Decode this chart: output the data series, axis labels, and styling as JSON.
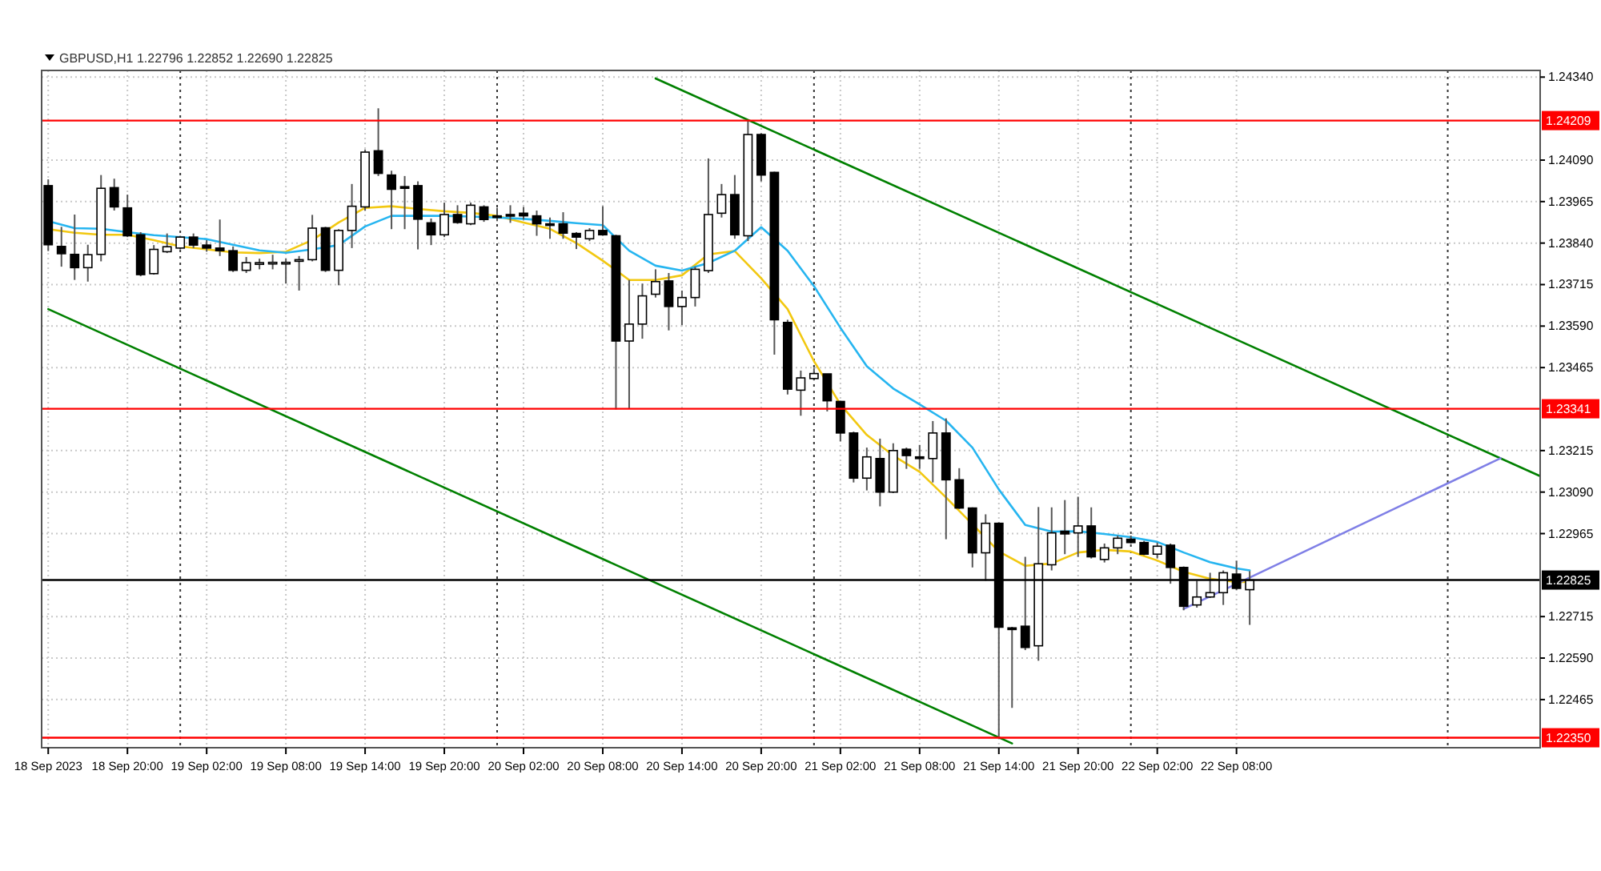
{
  "chart_data": {
    "type": "candlestick",
    "title": "GBPUSD,H1 1.22796 1.22852 1.22690 1.22825",
    "x": [
      "2023-09-18T14:00",
      "2023-09-18T15:00",
      "2023-09-18T16:00",
      "2023-09-18T17:00",
      "2023-09-18T18:00",
      "2023-09-18T19:00",
      "2023-09-18T20:00",
      "2023-09-18T21:00",
      "2023-09-18T22:00",
      "2023-09-18T23:00",
      "2023-09-19T00:00",
      "2023-09-19T01:00",
      "2023-09-19T02:00",
      "2023-09-19T03:00",
      "2023-09-19T04:00",
      "2023-09-19T05:00",
      "2023-09-19T06:00",
      "2023-09-19T07:00",
      "2023-09-19T08:00",
      "2023-09-19T09:00",
      "2023-09-19T10:00",
      "2023-09-19T11:00",
      "2023-09-19T12:00",
      "2023-09-19T13:00",
      "2023-09-19T14:00",
      "2023-09-19T15:00",
      "2023-09-19T16:00",
      "2023-09-19T17:00",
      "2023-09-19T18:00",
      "2023-09-19T19:00",
      "2023-09-19T20:00",
      "2023-09-19T21:00",
      "2023-09-19T22:00",
      "2023-09-19T23:00",
      "2023-09-20T00:00",
      "2023-09-20T01:00",
      "2023-09-20T02:00",
      "2023-09-20T03:00",
      "2023-09-20T04:00",
      "2023-09-20T05:00",
      "2023-09-20T06:00",
      "2023-09-20T07:00",
      "2023-09-20T08:00",
      "2023-09-20T09:00",
      "2023-09-20T10:00",
      "2023-09-20T11:00",
      "2023-09-20T12:00",
      "2023-09-20T13:00",
      "2023-09-20T14:00",
      "2023-09-20T15:00",
      "2023-09-20T16:00",
      "2023-09-20T17:00",
      "2023-09-20T18:00",
      "2023-09-20T19:00",
      "2023-09-20T20:00",
      "2023-09-20T21:00",
      "2023-09-20T22:00",
      "2023-09-20T23:00",
      "2023-09-21T00:00",
      "2023-09-21T01:00",
      "2023-09-21T02:00",
      "2023-09-21T03:00",
      "2023-09-21T04:00",
      "2023-09-21T05:00",
      "2023-09-21T06:00",
      "2023-09-21T07:00",
      "2023-09-21T08:00",
      "2023-09-21T09:00",
      "2023-09-21T10:00",
      "2023-09-21T11:00",
      "2023-09-21T12:00",
      "2023-09-21T13:00",
      "2023-09-21T14:00",
      "2023-09-21T15:00",
      "2023-09-21T16:00",
      "2023-09-21T17:00",
      "2023-09-21T18:00",
      "2023-09-21T19:00",
      "2023-09-21T20:00",
      "2023-09-21T21:00",
      "2023-09-21T22:00",
      "2023-09-21T23:00",
      "2023-09-22T00:00",
      "2023-09-22T01:00",
      "2023-09-22T02:00",
      "2023-09-22T03:00",
      "2023-09-22T04:00",
      "2023-09-22T05:00",
      "2023-09-22T06:00",
      "2023-09-22T07:00",
      "2023-09-22T08:00",
      "2023-09-22T09:00"
    ],
    "ohlc": [
      [
        1.24013,
        1.24032,
        1.23816,
        1.23835
      ],
      [
        1.2383,
        1.23889,
        1.23769,
        1.23808
      ],
      [
        1.23806,
        1.23926,
        1.23729,
        1.23766
      ],
      [
        1.23766,
        1.23835,
        1.23724,
        1.23805
      ],
      [
        1.23806,
        1.24045,
        1.23785,
        1.24005
      ],
      [
        1.24007,
        1.24034,
        1.23938,
        1.23949
      ],
      [
        1.23946,
        1.23986,
        1.23858,
        1.23862
      ],
      [
        1.23865,
        1.23873,
        1.2374,
        1.23745
      ],
      [
        1.23748,
        1.23834,
        1.23745,
        1.23821
      ],
      [
        1.23814,
        1.23869,
        1.2381,
        1.23829
      ],
      [
        1.23825,
        1.23862,
        1.23821,
        1.23858
      ],
      [
        1.23858,
        1.23869,
        1.23825,
        1.23834
      ],
      [
        1.23834,
        1.23849,
        1.23814,
        1.23825
      ],
      [
        1.23825,
        1.23911,
        1.23801,
        1.23817
      ],
      [
        1.23817,
        1.2383,
        1.23753,
        1.23758
      ],
      [
        1.23758,
        1.23798,
        1.2375,
        1.23781
      ],
      [
        1.23776,
        1.23793,
        1.23761,
        1.23781
      ],
      [
        1.2378,
        1.23805,
        1.23761,
        1.23782
      ],
      [
        1.23781,
        1.23793,
        1.23718,
        1.23782
      ],
      [
        1.23787,
        1.23801,
        1.23697,
        1.2379
      ],
      [
        1.2379,
        1.23925,
        1.23785,
        1.23885
      ],
      [
        1.23886,
        1.23889,
        1.23753,
        1.23758
      ],
      [
        1.23758,
        1.23882,
        1.23713,
        1.23878
      ],
      [
        1.23878,
        1.24018,
        1.23825,
        1.23951
      ],
      [
        1.23949,
        1.24122,
        1.23938,
        1.24114
      ],
      [
        1.24118,
        1.24246,
        1.24042,
        1.2405
      ],
      [
        1.24045,
        1.24058,
        1.23882,
        1.24002
      ],
      [
        1.2401,
        1.24042,
        1.23882,
        1.24005
      ],
      [
        1.24013,
        1.24026,
        1.23821,
        1.23912
      ],
      [
        1.23901,
        1.23914,
        1.23834,
        1.23865
      ],
      [
        1.23865,
        1.23962,
        1.23858,
        1.23926
      ],
      [
        1.23926,
        1.23954,
        1.23898,
        1.23902
      ],
      [
        1.23898,
        1.23962,
        1.23894,
        1.23954
      ],
      [
        1.23949,
        1.23954,
        1.23904,
        1.23911
      ],
      [
        1.23922,
        1.23946,
        1.23906,
        1.2392
      ],
      [
        1.23926,
        1.23954,
        1.23901,
        1.23923
      ],
      [
        1.2393,
        1.23949,
        1.23911,
        1.23922
      ],
      [
        1.23922,
        1.23938,
        1.23862,
        1.23898
      ],
      [
        1.23898,
        1.23917,
        1.23853,
        1.23896
      ],
      [
        1.23898,
        1.23933,
        1.23853,
        1.2387
      ],
      [
        1.23869,
        1.23873,
        1.23822,
        1.23858
      ],
      [
        1.23853,
        1.23885,
        1.23846,
        1.23878
      ],
      [
        1.23878,
        1.23951,
        1.23862,
        1.23865
      ],
      [
        1.23862,
        1.23865,
        1.23339,
        1.23545
      ],
      [
        1.23545,
        1.23729,
        1.23341,
        1.23596
      ],
      [
        1.23596,
        1.23718,
        1.23552,
        1.23681
      ],
      [
        1.23686,
        1.23761,
        1.23676,
        1.23724
      ],
      [
        1.23726,
        1.2375,
        1.23577,
        1.23649
      ],
      [
        1.23649,
        1.23697,
        1.23593,
        1.23676
      ],
      [
        1.23676,
        1.23769,
        1.23649,
        1.23761
      ],
      [
        1.23757,
        1.24095,
        1.2375,
        1.23926
      ],
      [
        1.2393,
        1.24018,
        1.23917,
        1.23986
      ],
      [
        1.23986,
        1.24045,
        1.23853,
        1.23865
      ],
      [
        1.23862,
        1.2421,
        1.23846,
        1.24167
      ],
      [
        1.24167,
        1.24171,
        1.24026,
        1.24045
      ],
      [
        1.24053,
        1.24055,
        1.23504,
        1.23609
      ],
      [
        1.23601,
        1.23609,
        1.23384,
        1.234
      ],
      [
        1.23397,
        1.23456,
        1.2332,
        1.23434
      ],
      [
        1.23432,
        1.23464,
        1.23426,
        1.23447
      ],
      [
        1.23446,
        1.23446,
        1.23333,
        1.23365
      ],
      [
        1.23363,
        1.23365,
        1.23243,
        1.23268
      ],
      [
        1.23268,
        1.23272,
        1.23119,
        1.23132
      ],
      [
        1.23132,
        1.23224,
        1.23095,
        1.23196
      ],
      [
        1.23191,
        1.23251,
        1.23047,
        1.2309
      ],
      [
        1.2309,
        1.23237,
        1.23087,
        1.23215
      ],
      [
        1.23219,
        1.23224,
        1.2316,
        1.232
      ],
      [
        1.23196,
        1.23232,
        1.2316,
        1.23191
      ],
      [
        1.23191,
        1.23304,
        1.23119,
        1.23268
      ],
      [
        1.23268,
        1.23312,
        1.22948,
        1.23127
      ],
      [
        1.23127,
        1.23162,
        1.23039,
        1.23042
      ],
      [
        1.23042,
        1.23044,
        1.22863,
        1.22907
      ],
      [
        1.22907,
        1.23023,
        1.22823,
        1.22996
      ],
      [
        1.22996,
        1.22999,
        1.2235,
        1.22683
      ],
      [
        1.22681,
        1.22684,
        1.2244,
        1.22676
      ],
      [
        1.22686,
        1.22895,
        1.22614,
        1.22622
      ],
      [
        1.22627,
        1.23045,
        1.22582,
        1.22874
      ],
      [
        1.22871,
        1.23044,
        1.22854,
        1.22967
      ],
      [
        1.22972,
        1.23066,
        1.22903,
        1.22964
      ],
      [
        1.22967,
        1.23076,
        1.22895,
        1.22988
      ],
      [
        1.22988,
        1.23044,
        1.2289,
        1.22895
      ],
      [
        1.22887,
        1.22935,
        1.22878,
        1.22922
      ],
      [
        1.22922,
        1.22959,
        1.22903,
        1.22951
      ],
      [
        1.22948,
        1.22959,
        1.22935,
        1.22938
      ],
      [
        1.22938,
        1.22943,
        1.229,
        1.22903
      ],
      [
        1.22903,
        1.22938,
        1.2289,
        1.22927
      ],
      [
        1.2293,
        1.22935,
        1.22814,
        1.22863
      ],
      [
        1.22863,
        1.22866,
        1.22734,
        1.22746
      ],
      [
        1.2275,
        1.22823,
        1.22742,
        1.22774
      ],
      [
        1.22774,
        1.22847,
        1.22771,
        1.22787
      ],
      [
        1.22787,
        1.22854,
        1.2275,
        1.22847
      ],
      [
        1.22843,
        1.22883,
        1.22795,
        1.228
      ],
      [
        1.22796,
        1.22852,
        1.2269,
        1.22825
      ]
    ],
    "colors": [
      "#000000",
      "#000000",
      "#000000",
      "#ffffff",
      "#ffffff",
      "#000000",
      "#000000",
      "#000000",
      "#ffffff",
      "#ffffff",
      "#ffffff",
      "#000000",
      "#000000",
      "#000000",
      "#000000",
      "#ffffff",
      "#ffffff",
      "#ffffff",
      "#ffffff",
      "#ffffff",
      "#ffffff",
      "#000000",
      "#ffffff",
      "#ffffff",
      "#ffffff",
      "#000000",
      "#000000",
      "#000000",
      "#000000",
      "#000000",
      "#ffffff",
      "#000000",
      "#ffffff",
      "#000000",
      "#000000",
      "#000000",
      "#000000",
      "#000000",
      "#000000",
      "#000000",
      "#000000",
      "#ffffff",
      "#000000",
      "#000000",
      "#ffffff",
      "#ffffff",
      "#ffffff",
      "#000000",
      "#ffffff",
      "#ffffff",
      "#ffffff",
      "#ffffff",
      "#000000",
      "#ffffff",
      "#000000",
      "#000000",
      "#000000",
      "#ffffff",
      "#ffffff",
      "#000000",
      "#000000",
      "#000000",
      "#ffffff",
      "#000000",
      "#ffffff",
      "#000000",
      "#000000",
      "#ffffff",
      "#000000",
      "#000000",
      "#000000",
      "#ffffff",
      "#000000",
      "#000000",
      "#000000",
      "#ffffff",
      "#ffffff",
      "#000000",
      "#ffffff",
      "#000000",
      "#ffffff",
      "#ffffff",
      "#000000",
      "#000000",
      "#ffffff",
      "#000000",
      "#000000",
      "#ffffff",
      "#ffffff",
      "#ffffff",
      "#000000",
      "#ffffff"
    ],
    "series": [
      {
        "type": "line",
        "color": "#f2c811",
        "x": [
          "2023-09-18T14:00",
          "2023-09-18T16:00",
          "2023-09-18T18:00",
          "2023-09-18T20:00",
          "2023-09-18T22:00",
          "2023-09-19T00:00",
          "2023-09-19T02:00",
          "2023-09-19T04:00",
          "2023-09-19T06:00",
          "2023-09-19T08:00",
          "2023-09-19T10:00",
          "2023-09-19T12:00",
          "2023-09-19T14:00",
          "2023-09-19T16:00",
          "2023-09-19T18:00",
          "2023-09-19T20:00",
          "2023-09-19T22:00",
          "2023-09-20T00:00",
          "2023-09-20T02:00",
          "2023-09-20T04:00",
          "2023-09-20T06:00",
          "2023-09-20T08:00",
          "2023-09-20T10:00",
          "2023-09-20T12:00",
          "2023-09-20T14:00",
          "2023-09-20T16:00",
          "2023-09-20T18:00",
          "2023-09-20T20:00",
          "2023-09-20T22:00",
          "2023-09-21T00:00",
          "2023-09-21T02:00",
          "2023-09-21T04:00",
          "2023-09-21T06:00",
          "2023-09-21T08:00",
          "2023-09-21T10:00",
          "2023-09-21T12:00",
          "2023-09-21T14:00",
          "2023-09-21T16:00",
          "2023-09-21T18:00",
          "2023-09-21T20:00",
          "2023-09-21T22:00",
          "2023-09-22T00:00",
          "2023-09-22T02:00",
          "2023-09-22T04:00",
          "2023-09-22T06:00",
          "2023-09-22T08:00",
          "2023-09-22T09:00"
        ],
        "values": [
          1.23882,
          1.23871,
          1.23865,
          1.23865,
          1.23849,
          1.2383,
          1.23821,
          1.23812,
          1.2381,
          1.23814,
          1.23849,
          1.23902,
          1.23946,
          1.23951,
          1.23943,
          1.23936,
          1.23931,
          1.23922,
          1.23902,
          1.23883,
          1.2384,
          1.23787,
          1.23729,
          1.23729,
          1.23743,
          1.23806,
          1.23816,
          1.23734,
          1.23641,
          1.23484,
          1.23354,
          1.23262,
          1.232,
          1.23151,
          1.23074,
          1.22993,
          1.22911,
          1.22868,
          1.22875,
          1.22908,
          1.22916,
          1.22911,
          1.22884,
          1.2285,
          1.22829,
          1.22819,
          1.22819
        ]
      },
      {
        "type": "line",
        "color": "#26b5f0",
        "x": [
          "2023-09-18T14:00",
          "2023-09-18T16:00",
          "2023-09-18T18:00",
          "2023-09-18T20:00",
          "2023-09-18T22:00",
          "2023-09-19T00:00",
          "2023-09-19T02:00",
          "2023-09-19T04:00",
          "2023-09-19T06:00",
          "2023-09-19T08:00",
          "2023-09-19T10:00",
          "2023-09-19T12:00",
          "2023-09-19T14:00",
          "2023-09-19T16:00",
          "2023-09-19T18:00",
          "2023-09-19T20:00",
          "2023-09-19T22:00",
          "2023-09-20T00:00",
          "2023-09-20T02:00",
          "2023-09-20T04:00",
          "2023-09-20T06:00",
          "2023-09-20T08:00",
          "2023-09-20T10:00",
          "2023-09-20T12:00",
          "2023-09-20T14:00",
          "2023-09-20T16:00",
          "2023-09-20T18:00",
          "2023-09-20T20:00",
          "2023-09-20T22:00",
          "2023-09-21T00:00",
          "2023-09-21T02:00",
          "2023-09-21T04:00",
          "2023-09-21T06:00",
          "2023-09-21T08:00",
          "2023-09-21T10:00",
          "2023-09-21T12:00",
          "2023-09-21T14:00",
          "2023-09-21T16:00",
          "2023-09-21T18:00",
          "2023-09-21T20:00",
          "2023-09-21T22:00",
          "2023-09-22T00:00",
          "2023-09-22T02:00",
          "2023-09-22T04:00",
          "2023-09-22T06:00",
          "2023-09-22T08:00",
          "2023-09-22T09:00"
        ],
        "values": [
          1.23906,
          1.23885,
          1.23883,
          1.23873,
          1.23864,
          1.23858,
          1.23852,
          1.23835,
          1.23818,
          1.23811,
          1.23821,
          1.23834,
          1.2389,
          1.23922,
          1.23922,
          1.23922,
          1.2392,
          1.23917,
          1.23913,
          1.23907,
          1.239,
          1.23894,
          1.23817,
          1.23772,
          1.23757,
          1.2378,
          1.23817,
          1.23888,
          1.23817,
          1.2371,
          1.23585,
          1.23469,
          1.23402,
          1.23354,
          1.23305,
          1.23224,
          1.23098,
          1.22991,
          1.22971,
          1.22972,
          1.22964,
          1.22954,
          1.2294,
          1.22908,
          1.22879,
          1.2286,
          1.22854
        ]
      },
      {
        "type": "line",
        "color": "#008000",
        "x": [
          "2023-09-20T12:00",
          "2023-09-23T07:00"
        ],
        "values": [
          1.24336,
          1.23138
        ]
      },
      {
        "type": "line",
        "color": "#008000",
        "x": [
          "2023-09-18T14:00",
          "2023-09-21T15:00"
        ],
        "values": [
          1.23641,
          1.22333
        ]
      },
      {
        "type": "line",
        "color": "#7f7fe6",
        "x": [
          "2023-09-22T04:00",
          "2023-09-23T04:00"
        ],
        "values": [
          1.22738,
          1.23192
        ]
      }
    ],
    "xlim": [
      "2023-09-18T13:30",
      "2023-09-23T07:00"
    ],
    "xticks": [
      {
        "value": "2023-09-18T14:00",
        "label": "18 Sep 2023"
      },
      {
        "value": "2023-09-18T20:00",
        "label": "18 Sep 20:00"
      },
      {
        "value": "2023-09-19T02:00",
        "label": "19 Sep 02:00"
      },
      {
        "value": "2023-09-19T08:00",
        "label": "19 Sep 08:00"
      },
      {
        "value": "2023-09-19T14:00",
        "label": "19 Sep 14:00"
      },
      {
        "value": "2023-09-19T20:00",
        "label": "19 Sep 20:00"
      },
      {
        "value": "2023-09-20T02:00",
        "label": "20 Sep 02:00"
      },
      {
        "value": "2023-09-20T08:00",
        "label": "20 Sep 08:00"
      },
      {
        "value": "2023-09-20T14:00",
        "label": "20 Sep 14:00"
      },
      {
        "value": "2023-09-20T20:00",
        "label": "20 Sep 20:00"
      },
      {
        "value": "2023-09-21T02:00",
        "label": "21 Sep 02:00"
      },
      {
        "value": "2023-09-21T08:00",
        "label": "21 Sep 08:00"
      },
      {
        "value": "2023-09-21T14:00",
        "label": "21 Sep 14:00"
      },
      {
        "value": "2023-09-21T20:00",
        "label": "21 Sep 20:00"
      },
      {
        "value": "2023-09-22T02:00",
        "label": "22 Sep 02:00"
      },
      {
        "value": "2023-09-22T08:00",
        "label": "22 Sep 08:00"
      }
    ],
    "ylim": [
      1.2232,
      1.2436
    ],
    "yticks": [
      {
        "value": 1.2434,
        "label": "1.24340"
      },
      {
        "value": 1.2409,
        "label": "1.24090"
      },
      1.23965,
      {
        "value": 1.2384,
        "label": "1.23840"
      },
      1.23715,
      {
        "value": 1.2359,
        "label": "1.23590"
      },
      1.23465,
      1.23215,
      {
        "value": 1.2309,
        "label": "1.23090"
      },
      1.22965,
      1.22715,
      {
        "value": 1.2259,
        "label": "1.22590"
      },
      1.22465
    ],
    "grid": true,
    "ref_lines": [
      {
        "axis": "y",
        "value": 1.24209,
        "label": "1.24209",
        "color": "#ff0000"
      },
      {
        "axis": "y",
        "value": 1.23341,
        "label": "1.23341",
        "color": "#ff0000"
      },
      {
        "axis": "y",
        "value": 1.2235,
        "label": "1.22350",
        "color": "#ff0000"
      },
      {
        "axis": "y",
        "value": 1.22825,
        "label": "1.22825",
        "color": "#000000"
      },
      {
        "axis": "x",
        "value": "2023-09-19T00:00",
        "color": "#333333",
        "line_style": "dotted"
      },
      {
        "axis": "x",
        "value": "2023-09-20T00:00",
        "color": "#333333",
        "line_style": "dotted"
      },
      {
        "axis": "x",
        "value": "2023-09-21T00:00",
        "color": "#333333",
        "line_style": "dotted"
      },
      {
        "axis": "x",
        "value": "2023-09-22T00:00",
        "color": "#333333",
        "line_style": "dotted"
      },
      {
        "axis": "x",
        "value": "2023-09-23T00:00",
        "color": "#333333",
        "line_style": "dotted"
      }
    ]
  }
}
